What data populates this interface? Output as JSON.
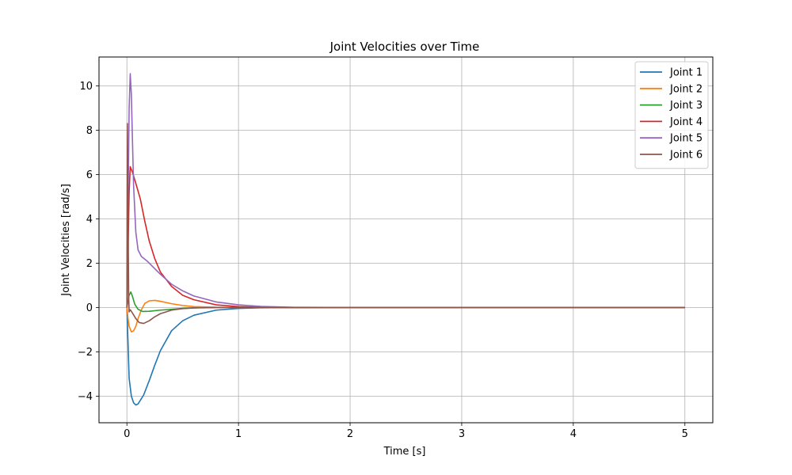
{
  "chart_data": {
    "type": "line",
    "title": "Joint Velocities over Time",
    "xlabel": "Time [s]",
    "ylabel": "Joint Velocities [rad/s]",
    "xlim": [
      -0.25,
      5.25
    ],
    "ylim": [
      -5.2,
      11.3
    ],
    "xticks": [
      0,
      1,
      2,
      3,
      4,
      5
    ],
    "yticks": [
      -4,
      -2,
      0,
      2,
      4,
      6,
      8,
      10
    ],
    "xtick_labels": [
      "0",
      "1",
      "2",
      "3",
      "4",
      "5"
    ],
    "ytick_labels": [
      "−4",
      "−2",
      "0",
      "2",
      "4",
      "6",
      "8",
      "10"
    ],
    "grid": true,
    "legend_position": "top-right",
    "series": [
      {
        "name": "Joint 1",
        "color": "#1f77b4",
        "points": [
          [
            0,
            0
          ],
          [
            0.01,
            -1.6
          ],
          [
            0.02,
            -3.2
          ],
          [
            0.04,
            -4.0
          ],
          [
            0.06,
            -4.3
          ],
          [
            0.08,
            -4.4
          ],
          [
            0.1,
            -4.35
          ],
          [
            0.15,
            -3.95
          ],
          [
            0.2,
            -3.3
          ],
          [
            0.25,
            -2.6
          ],
          [
            0.3,
            -1.95
          ],
          [
            0.4,
            -1.05
          ],
          [
            0.5,
            -0.6
          ],
          [
            0.6,
            -0.35
          ],
          [
            0.8,
            -0.12
          ],
          [
            1.0,
            -0.04
          ],
          [
            1.2,
            -0.015
          ],
          [
            1.5,
            0
          ],
          [
            2,
            0
          ],
          [
            3,
            0
          ],
          [
            4,
            0
          ],
          [
            5,
            0
          ]
        ]
      },
      {
        "name": "Joint 2",
        "color": "#ff7f0e",
        "points": [
          [
            0,
            0
          ],
          [
            0.01,
            -0.5
          ],
          [
            0.02,
            -0.85
          ],
          [
            0.04,
            -1.1
          ],
          [
            0.06,
            -1.05
          ],
          [
            0.08,
            -0.85
          ],
          [
            0.1,
            -0.5
          ],
          [
            0.13,
            -0.1
          ],
          [
            0.16,
            0.18
          ],
          [
            0.2,
            0.3
          ],
          [
            0.25,
            0.32
          ],
          [
            0.3,
            0.28
          ],
          [
            0.4,
            0.17
          ],
          [
            0.5,
            0.09
          ],
          [
            0.6,
            0.04
          ],
          [
            0.8,
            0.01
          ],
          [
            1.0,
            0
          ],
          [
            2,
            0
          ],
          [
            3,
            0
          ],
          [
            4,
            0
          ],
          [
            5,
            0
          ]
        ]
      },
      {
        "name": "Joint 3",
        "color": "#2ca02c",
        "points": [
          [
            0,
            0
          ],
          [
            0.01,
            0.3
          ],
          [
            0.02,
            0.55
          ],
          [
            0.035,
            0.7
          ],
          [
            0.05,
            0.5
          ],
          [
            0.07,
            0.15
          ],
          [
            0.1,
            -0.08
          ],
          [
            0.14,
            -0.18
          ],
          [
            0.2,
            -0.17
          ],
          [
            0.3,
            -0.12
          ],
          [
            0.4,
            -0.08
          ],
          [
            0.5,
            -0.04
          ],
          [
            0.6,
            -0.02
          ],
          [
            0.8,
            0
          ],
          [
            1,
            0
          ],
          [
            2,
            0
          ],
          [
            3,
            0
          ],
          [
            4,
            0
          ],
          [
            5,
            0
          ]
        ]
      },
      {
        "name": "Joint 4",
        "color": "#d62728",
        "points": [
          [
            0,
            0
          ],
          [
            0.01,
            2.5
          ],
          [
            0.02,
            5.2
          ],
          [
            0.03,
            6.35
          ],
          [
            0.05,
            6.1
          ],
          [
            0.08,
            5.6
          ],
          [
            0.12,
            4.9
          ],
          [
            0.16,
            3.9
          ],
          [
            0.2,
            3.0
          ],
          [
            0.25,
            2.2
          ],
          [
            0.3,
            1.6
          ],
          [
            0.4,
            0.95
          ],
          [
            0.5,
            0.55
          ],
          [
            0.6,
            0.35
          ],
          [
            0.8,
            0.12
          ],
          [
            1.0,
            0.04
          ],
          [
            1.2,
            0.01
          ],
          [
            1.5,
            0
          ],
          [
            2,
            0
          ],
          [
            3,
            0
          ],
          [
            4,
            0
          ],
          [
            5,
            0
          ]
        ]
      },
      {
        "name": "Joint 5",
        "color": "#9467bd",
        "points": [
          [
            0,
            0
          ],
          [
            0.01,
            4.5
          ],
          [
            0.02,
            9.0
          ],
          [
            0.03,
            10.55
          ],
          [
            0.04,
            9.6
          ],
          [
            0.05,
            7.5
          ],
          [
            0.06,
            5.5
          ],
          [
            0.08,
            3.4
          ],
          [
            0.1,
            2.6
          ],
          [
            0.13,
            2.3
          ],
          [
            0.18,
            2.1
          ],
          [
            0.25,
            1.75
          ],
          [
            0.3,
            1.5
          ],
          [
            0.4,
            1.05
          ],
          [
            0.5,
            0.75
          ],
          [
            0.6,
            0.52
          ],
          [
            0.8,
            0.25
          ],
          [
            1.0,
            0.12
          ],
          [
            1.2,
            0.05
          ],
          [
            1.5,
            0.01
          ],
          [
            2,
            0
          ],
          [
            3,
            0
          ],
          [
            4,
            0
          ],
          [
            5,
            0
          ]
        ]
      },
      {
        "name": "Joint 6",
        "color": "#8c564b",
        "points": [
          [
            0,
            0
          ],
          [
            0.004,
            8.3
          ],
          [
            0.008,
            6.0
          ],
          [
            0.012,
            3.0
          ],
          [
            0.016,
            0.5
          ],
          [
            0.02,
            -0.2
          ],
          [
            0.03,
            -0.1
          ],
          [
            0.05,
            -0.25
          ],
          [
            0.08,
            -0.5
          ],
          [
            0.11,
            -0.68
          ],
          [
            0.15,
            -0.72
          ],
          [
            0.2,
            -0.6
          ],
          [
            0.25,
            -0.42
          ],
          [
            0.3,
            -0.28
          ],
          [
            0.4,
            -0.12
          ],
          [
            0.5,
            -0.05
          ],
          [
            0.6,
            -0.02
          ],
          [
            0.8,
            0
          ],
          [
            1,
            0
          ],
          [
            2,
            0
          ],
          [
            3,
            0
          ],
          [
            4,
            0
          ],
          [
            5,
            0
          ]
        ]
      }
    ]
  }
}
